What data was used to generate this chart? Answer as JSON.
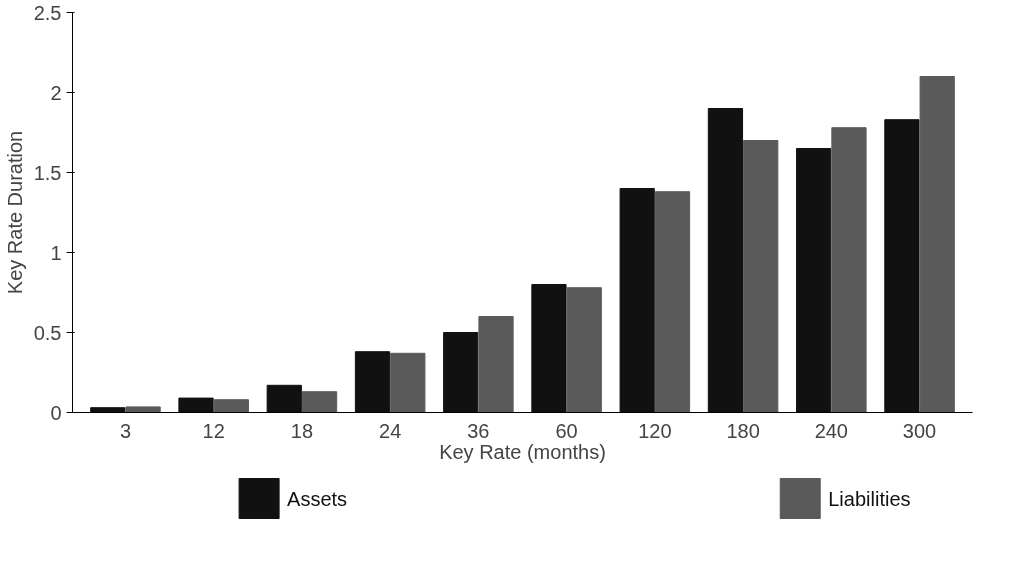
{
  "chart_data": {
    "type": "bar",
    "xlabel": "Key Rate (months)",
    "ylabel": "Key Rate Duration",
    "categories": [
      "3",
      "12",
      "18",
      "24",
      "36",
      "60",
      "120",
      "180",
      "240",
      "300"
    ],
    "series": [
      {
        "name": "Assets",
        "color": "#111111",
        "values": [
          0.03,
          0.09,
          0.17,
          0.38,
          0.5,
          0.8,
          1.4,
          1.9,
          1.65,
          1.83
        ]
      },
      {
        "name": "Liabilities",
        "color": "#5a5a5a",
        "values": [
          0.035,
          0.08,
          0.13,
          0.37,
          0.6,
          0.78,
          1.38,
          1.7,
          1.78,
          2.1
        ]
      }
    ],
    "ylim": [
      0,
      2.5
    ],
    "yticks": [
      0,
      0.5,
      1,
      1.5,
      2,
      2.5
    ],
    "grid": false,
    "legend": "bottom"
  }
}
